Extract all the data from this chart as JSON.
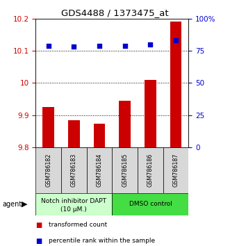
{
  "title": "GDS4488 / 1373475_at",
  "samples": [
    "GSM786182",
    "GSM786183",
    "GSM786184",
    "GSM786185",
    "GSM786186",
    "GSM786187"
  ],
  "bar_values": [
    9.925,
    9.885,
    9.875,
    9.945,
    10.01,
    10.19
  ],
  "percentile_values": [
    79,
    78,
    79,
    79,
    80,
    83
  ],
  "ylim_left": [
    9.8,
    10.2
  ],
  "ylim_right": [
    0,
    100
  ],
  "yticks_left": [
    9.8,
    9.9,
    10.0,
    10.1,
    10.2
  ],
  "ytick_labels_left": [
    "9.8",
    "9.9",
    "10",
    "10.1",
    "10.2"
  ],
  "yticks_right": [
    0,
    25,
    50,
    75,
    100
  ],
  "ytick_labels_right": [
    "0",
    "25",
    "50",
    "75",
    "100%"
  ],
  "bar_color": "#cc0000",
  "dot_color": "#0000cc",
  "group1_label_line1": "Notch inhibitor DAPT",
  "group1_label_line2": "(10 μM.)",
  "group2_label": "DMSO control",
  "group1_indices": [
    0,
    1,
    2
  ],
  "group2_indices": [
    3,
    4,
    5
  ],
  "agent_label": "agent",
  "legend1": "transformed count",
  "legend2": "percentile rank within the sample",
  "group1_color": "#ccffcc",
  "group2_color": "#44dd44",
  "bar_width": 0.45,
  "dotted_line_values": [
    9.9,
    10.0,
    10.1
  ],
  "tick_color_left": "#cc0000",
  "tick_color_right": "#0000cc"
}
